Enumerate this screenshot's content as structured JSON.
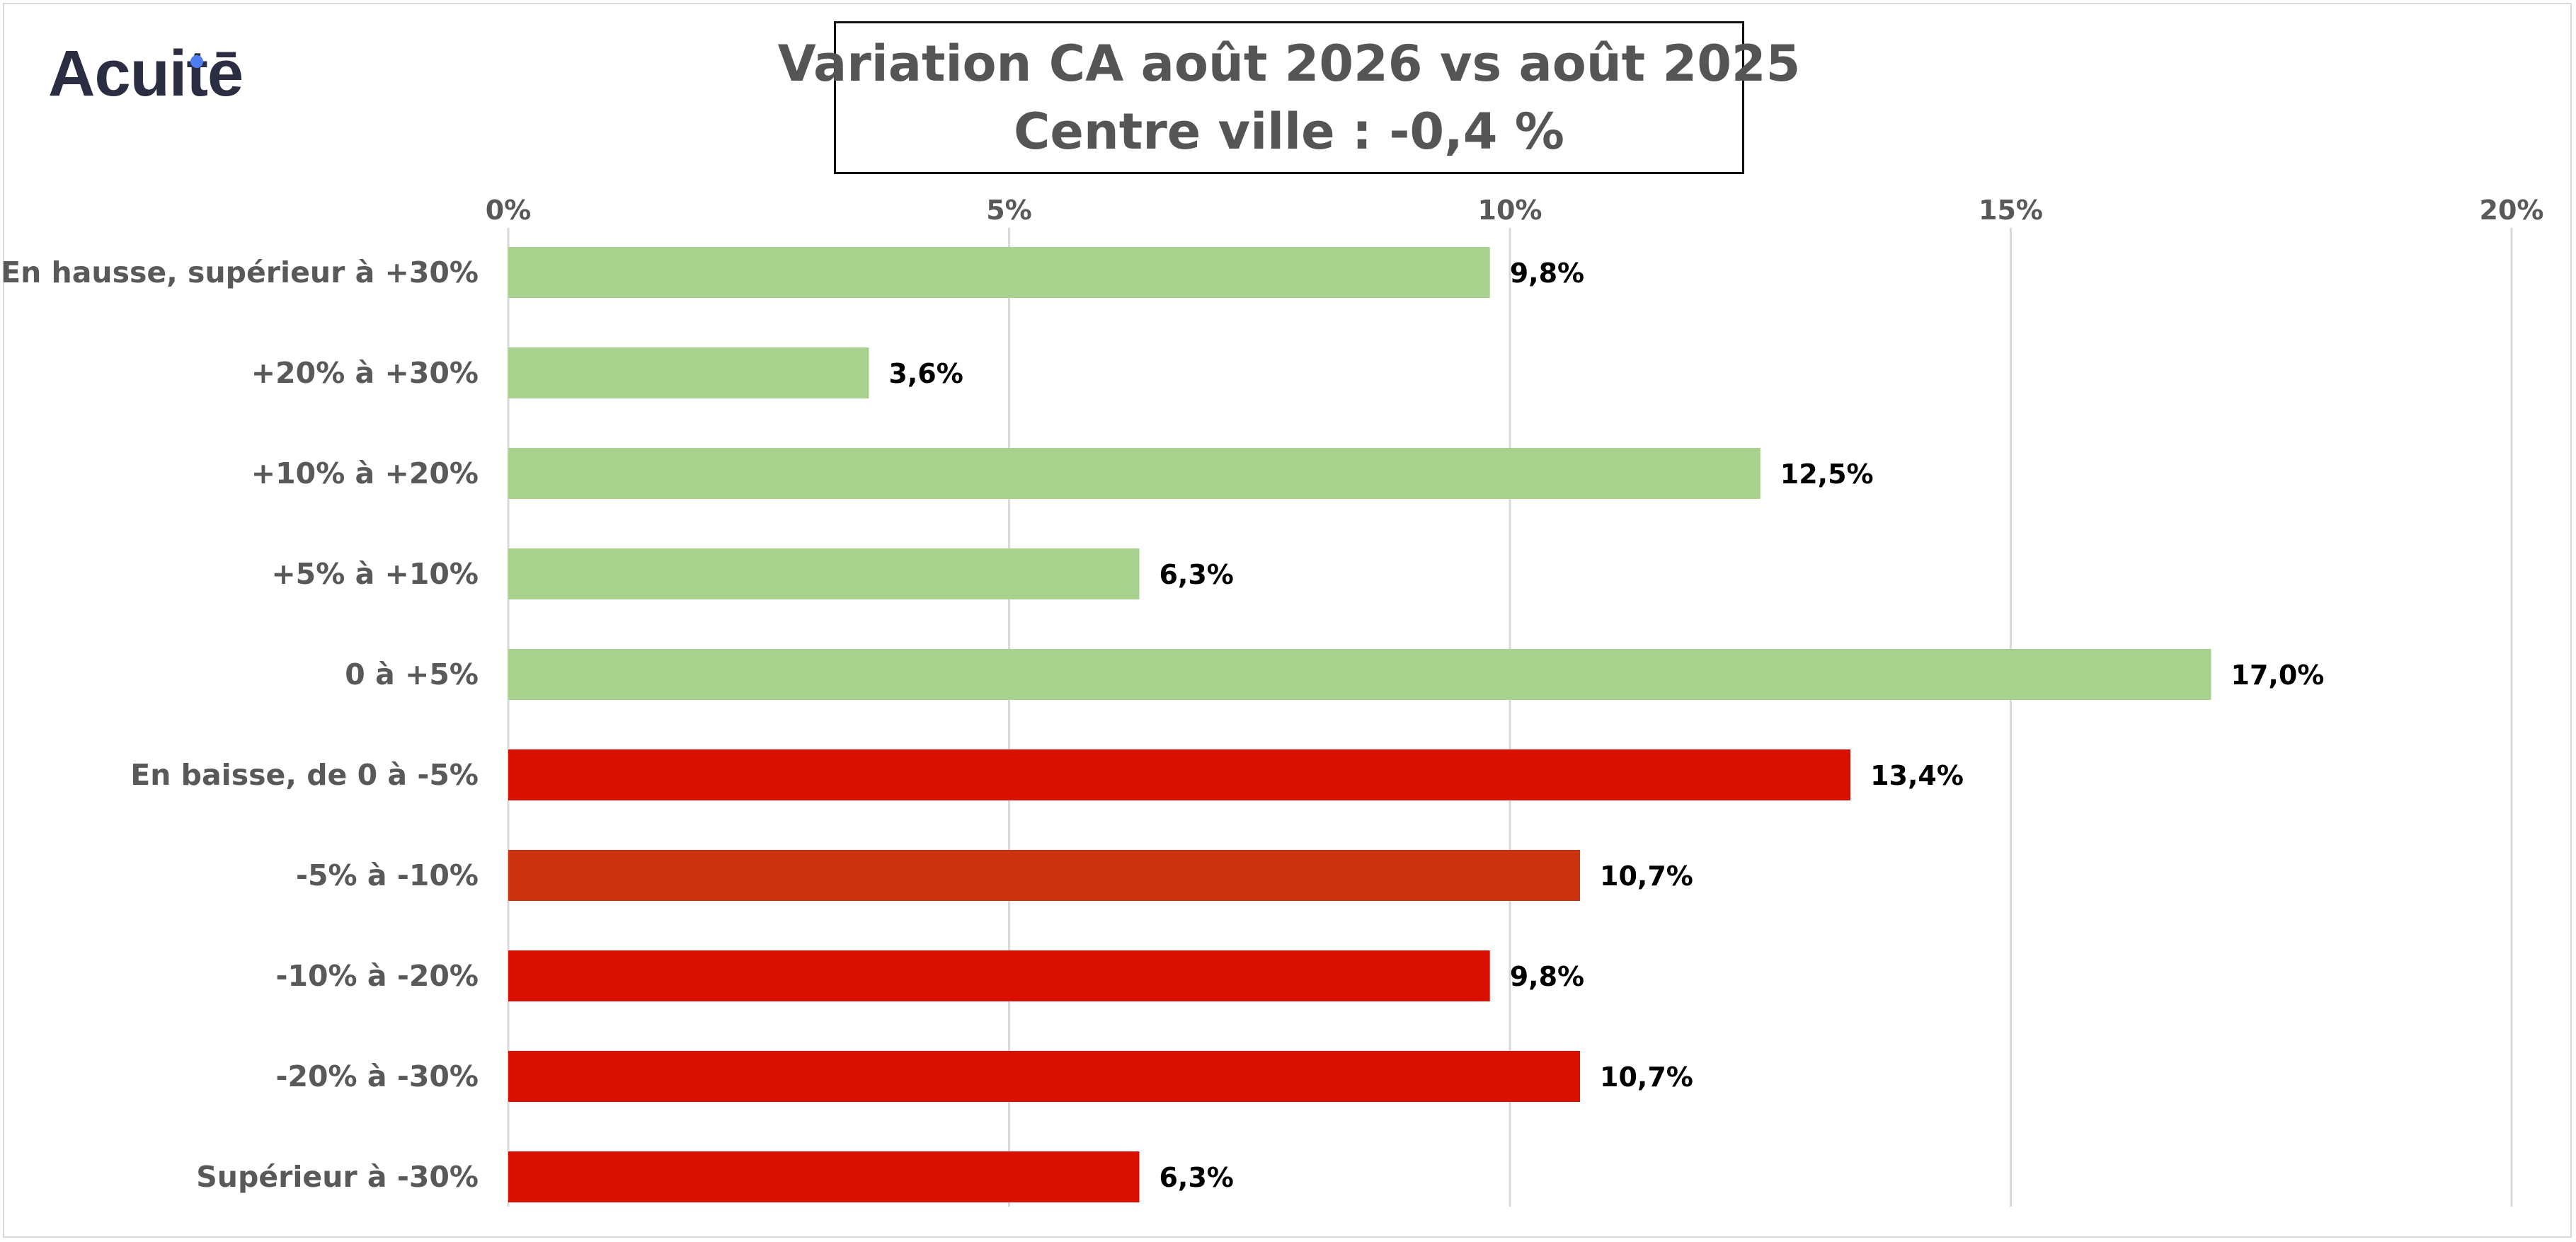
{
  "logo": {
    "text": "Acuitē",
    "dot_color": "#4f7df2"
  },
  "chart_data": {
    "type": "bar",
    "orientation": "horizontal",
    "title": [
      "Variation CA août 2026 vs août 2025",
      "Centre ville  : -0,4 %"
    ],
    "xlim": [
      0,
      20
    ],
    "x_ticks": [
      0,
      5,
      10,
      15,
      20
    ],
    "x_tick_labels": [
      "0%",
      "5%",
      "10%",
      "15%",
      "20%"
    ],
    "xlabel": "",
    "ylabel": "",
    "grid": true,
    "legend": "none",
    "categories": [
      "En hausse, supérieur à +30%",
      "+20% à +30%",
      "+10% à +20%",
      "+5% à +10%",
      "0 à +5%",
      "En baisse, de 0 à -5%",
      "-5% à -10%",
      "-10% à -20%",
      "-20% à -30%",
      "Supérieur à -30%"
    ],
    "values": [
      9.8,
      3.6,
      12.5,
      6.3,
      17.0,
      13.4,
      10.7,
      9.8,
      10.7,
      6.3
    ],
    "value_labels": [
      "9,8%",
      "3,6%",
      "12,5%",
      "6,3%",
      "17,0%",
      "13,4%",
      "10,7%",
      "9,8%",
      "10,7%",
      "6,3%"
    ],
    "bar_colors": [
      "#a9d18e",
      "#a9d18e",
      "#a9d18e",
      "#a9d18e",
      "#a9d18e",
      "#d91000",
      "#cc3311",
      "#d91000",
      "#d91000",
      "#d91000"
    ]
  }
}
